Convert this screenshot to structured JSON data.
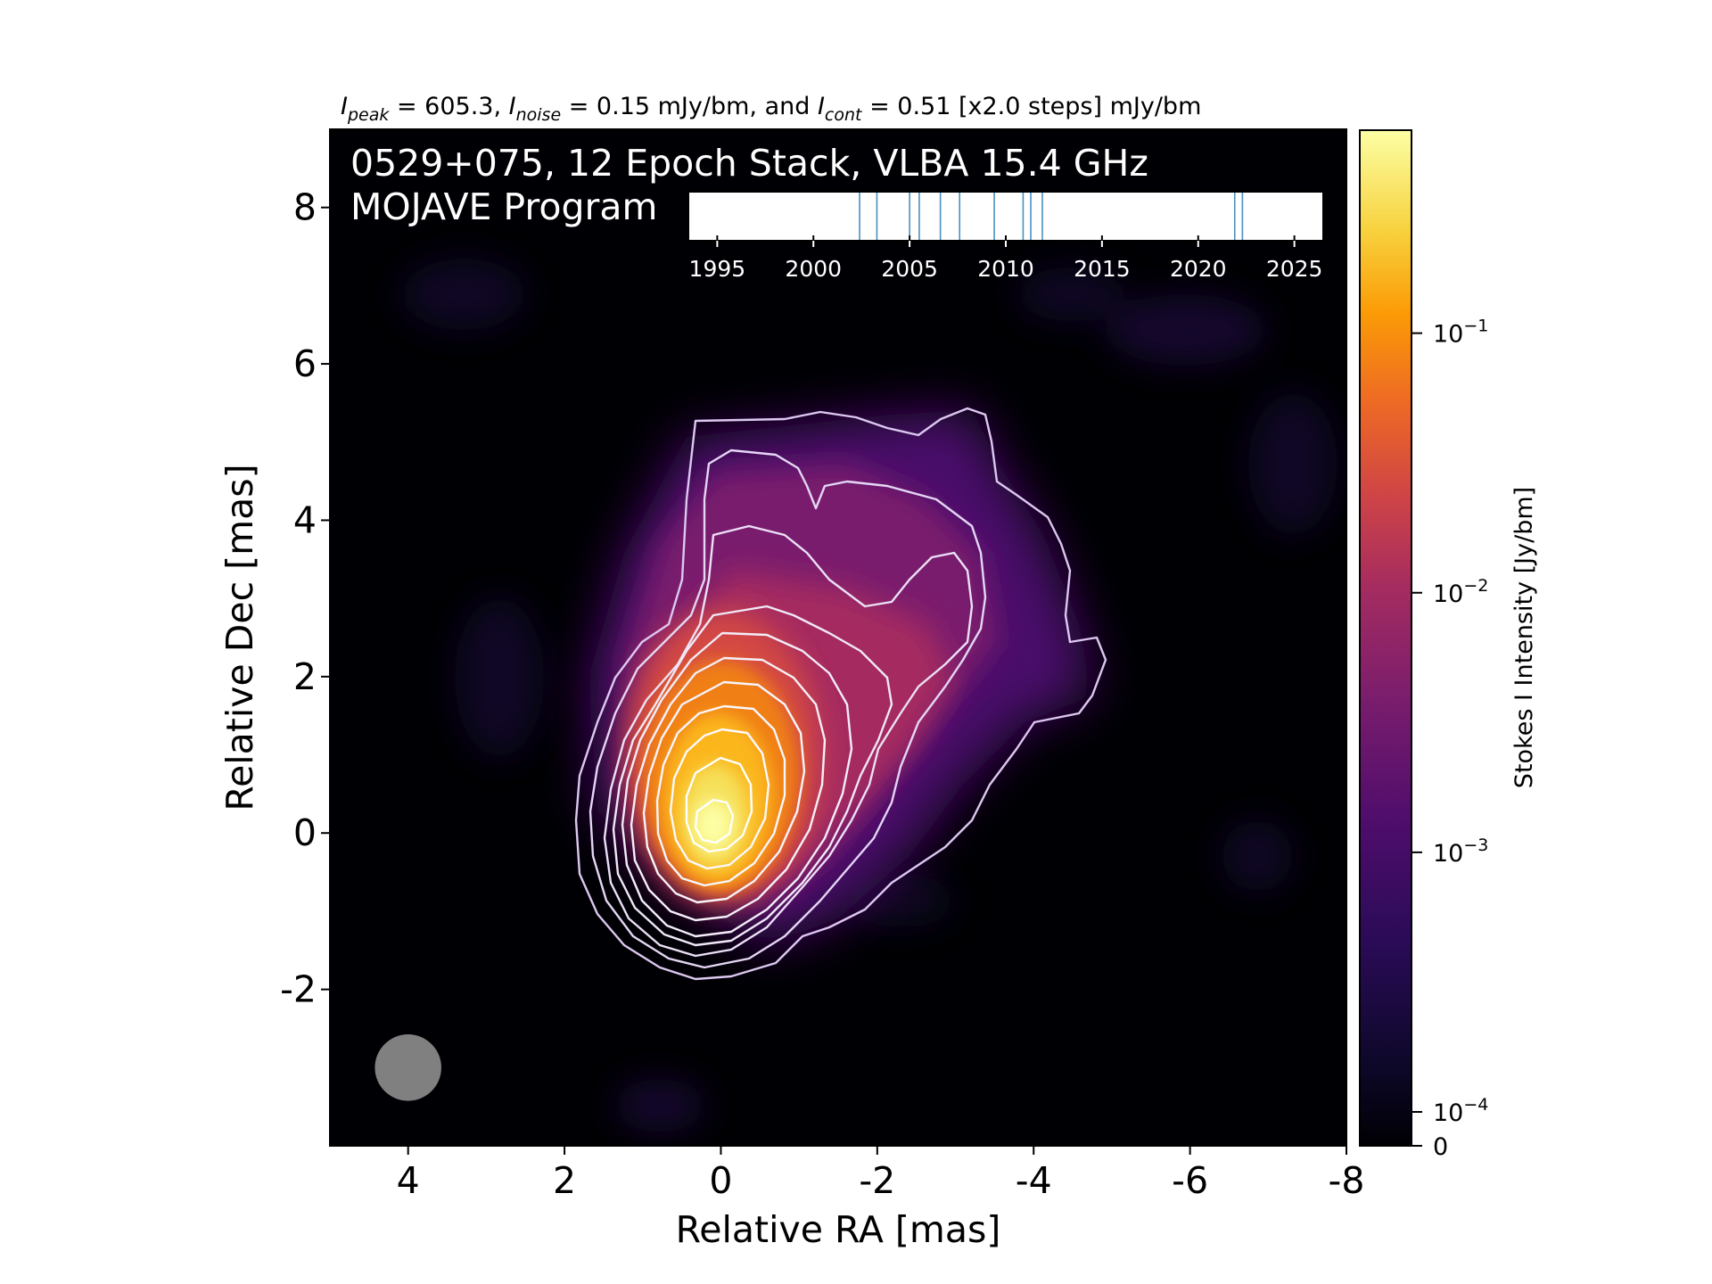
{
  "chart_data": {
    "type": "heatmap",
    "header": {
      "peak_sym": "I",
      "peak_sub": "peak",
      "peak_val": " = 605.3, ",
      "noise_sym": "I",
      "noise_sub": "noise",
      "noise_val": " = 0.15 mJy/bm, and ",
      "cont_sym": "I",
      "cont_sub": "cont",
      "cont_val": " = 0.51 [x2.0 steps] mJy/bm"
    },
    "title_line1": "0529+075, 12 Epoch Stack, VLBA 15.4 GHz",
    "title_line2": "MOJAVE Program",
    "xlabel": "Relative RA [mas]",
    "ylabel": "Relative Dec [mas]",
    "xlim": [
      5,
      -8
    ],
    "ylim": [
      -4,
      9
    ],
    "x_ticks": [
      4,
      2,
      0,
      -2,
      -4,
      -6,
      -8
    ],
    "x_tick_labels": [
      "4",
      "2",
      "0",
      "-2",
      "-4",
      "-6",
      "-8"
    ],
    "y_ticks": [
      -2,
      0,
      2,
      4,
      6,
      8
    ],
    "y_tick_labels": [
      "-2",
      "0",
      "2",
      "4",
      "6",
      "8"
    ],
    "colormap": "inferno",
    "colorbar": {
      "label": "Stokes I Intensity [Jy/bm]",
      "scale": "log",
      "range_jy": [
        0,
        0.6053
      ],
      "ticks": [
        {
          "value": 0.1,
          "base": "10",
          "exp": "−1"
        },
        {
          "value": 0.01,
          "base": "10",
          "exp": "−2"
        },
        {
          "value": 0.001,
          "base": "10",
          "exp": "−3"
        },
        {
          "value": 0.0001,
          "base": "10",
          "exp": "−4"
        },
        {
          "value": 0,
          "base": "0",
          "exp": ""
        }
      ]
    },
    "peak_position_mas": [
      -0.1,
      0.25
    ],
    "contour_levels_mjy": [
      0.51,
      1.02,
      2.04,
      4.08,
      8.16,
      16.32,
      32.64,
      65.28,
      130.56,
      261.12,
      522.24
    ],
    "beam": {
      "center_mas": [
        4.0,
        -3.0
      ],
      "major_mas": 0.85,
      "minor_mas": 0.85,
      "color": "#808080"
    },
    "epochs_timeline": {
      "xlim": [
        1993.5,
        2026.5
      ],
      "ticks": [
        1995,
        2000,
        2005,
        2010,
        2015,
        2020,
        2025
      ],
      "tick_labels": [
        "1995",
        "2000",
        "2005",
        "2010",
        "2015",
        "2020",
        "2025"
      ],
      "epochs": [
        2002.4,
        2003.3,
        2005.0,
        2005.5,
        2006.6,
        2007.6,
        2009.4,
        2010.9,
        2011.3,
        2011.9,
        2021.9,
        2022.3
      ],
      "line_color": "#4a90c0"
    }
  }
}
